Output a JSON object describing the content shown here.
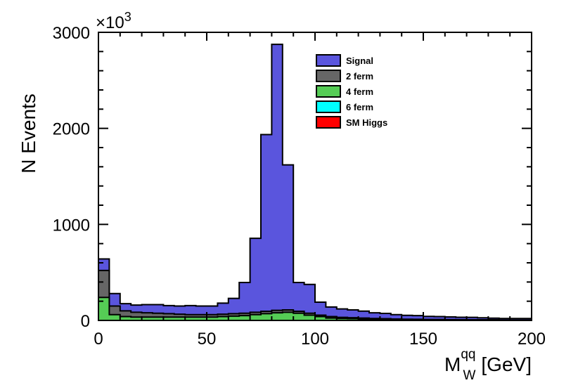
{
  "chart_data": {
    "type": "area",
    "stacked": true,
    "histogram": true,
    "multiplier": "×10",
    "multiplier_exp": "3",
    "ylabel": "N Events",
    "xlabel_main": "M",
    "xlabel_sup": "qq",
    "xlabel_sub": "W",
    "xlabel_unit": "[GeV]",
    "xlim": [
      0,
      200
    ],
    "ylim": [
      0,
      3000
    ],
    "x_ticks": [
      0,
      50,
      100,
      150,
      200
    ],
    "y_ticks": [
      0,
      1000,
      2000,
      3000
    ],
    "x_tick_labels": [
      "0",
      "50",
      "100",
      "150",
      "200"
    ],
    "y_tick_labels": [
      "0",
      "1000",
      "2000",
      "3000"
    ],
    "grid": false,
    "legend_position": "top-center",
    "bin_edges": [
      0,
      5,
      10,
      15,
      20,
      25,
      30,
      35,
      40,
      45,
      50,
      55,
      60,
      65,
      70,
      75,
      80,
      85,
      90,
      95,
      100,
      105,
      110,
      115,
      120,
      125,
      130,
      135,
      140,
      145,
      150,
      155,
      160,
      165,
      170,
      175,
      180,
      185,
      190,
      195,
      200
    ],
    "series": [
      {
        "name": "SM Higgs",
        "color": "#ff0000",
        "values": [
          0,
          0,
          0,
          0,
          0,
          0,
          0,
          0,
          0,
          0,
          0,
          0,
          0,
          0,
          0,
          0,
          0,
          0,
          0,
          0,
          0,
          0,
          0,
          0,
          0,
          0,
          0,
          0,
          0,
          0,
          0,
          0,
          0,
          0,
          0,
          0,
          0,
          0,
          0,
          0
        ]
      },
      {
        "name": "6 ferm",
        "color": "#00ffff",
        "values": [
          0,
          0,
          0,
          0,
          0,
          0,
          0,
          0,
          0,
          0,
          0,
          0,
          0,
          0,
          0,
          0,
          0,
          0,
          0,
          0,
          0,
          0,
          0,
          0,
          0,
          0,
          0,
          0,
          0,
          0,
          0,
          0,
          0,
          0,
          0,
          0,
          0,
          0,
          0,
          0
        ]
      },
      {
        "name": "4 ferm",
        "color": "#55cc55",
        "values": [
          240,
          60,
          40,
          35,
          35,
          35,
          35,
          35,
          35,
          35,
          35,
          40,
          45,
          50,
          60,
          70,
          80,
          85,
          75,
          55,
          40,
          25,
          20,
          18,
          15,
          12,
          10,
          8,
          7,
          6,
          5,
          5,
          4,
          4,
          3,
          3,
          3,
          2,
          2,
          2
        ]
      },
      {
        "name": "2 ferm",
        "color": "#666666",
        "values": [
          280,
          90,
          60,
          50,
          45,
          40,
          35,
          30,
          25,
          25,
          25,
          25,
          25,
          25,
          25,
          25,
          25,
          25,
          20,
          20,
          15,
          15,
          12,
          10,
          10,
          8,
          8,
          7,
          6,
          6,
          5,
          5,
          5,
          4,
          4,
          4,
          4,
          3,
          3,
          3
        ]
      },
      {
        "name": "Signal",
        "color": "#5a55dd",
        "values": [
          120,
          130,
          75,
          75,
          85,
          90,
          85,
          85,
          95,
          90,
          90,
          115,
          160,
          320,
          770,
          1840,
          2770,
          1510,
          300,
          300,
          135,
          100,
          88,
          82,
          72,
          60,
          55,
          45,
          40,
          38,
          32,
          30,
          28,
          25,
          25,
          20,
          17,
          15,
          15,
          15
        ]
      }
    ]
  }
}
